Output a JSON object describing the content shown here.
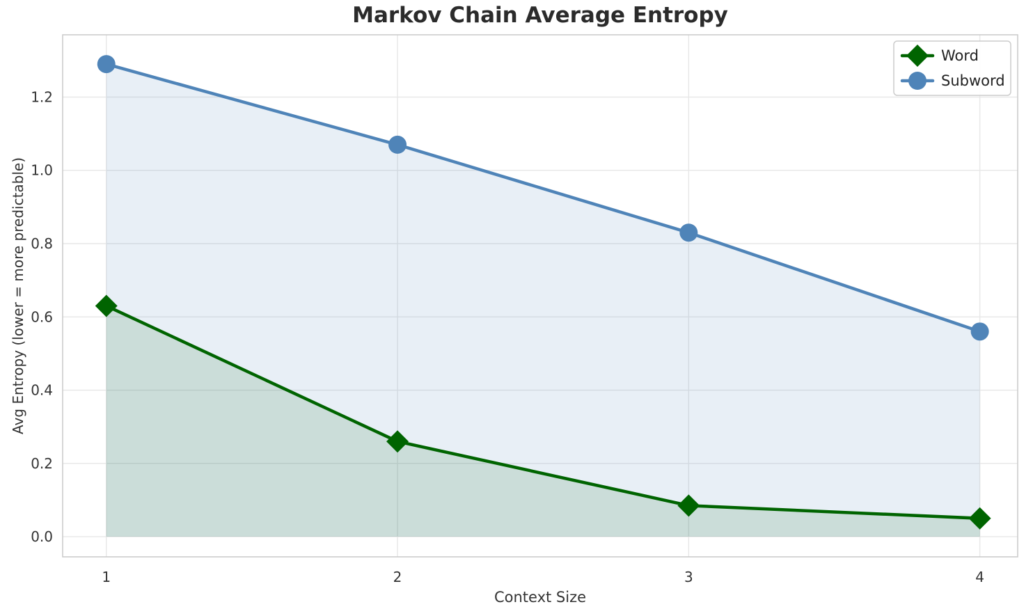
{
  "chart_data": {
    "type": "line",
    "title": "Markov Chain Average Entropy",
    "xlabel": "Context Size",
    "ylabel": "Avg Entropy (lower = more predictable)",
    "x": [
      1,
      2,
      3,
      4
    ],
    "series": [
      {
        "name": "Word",
        "values": [
          0.63,
          0.26,
          0.085,
          0.05
        ],
        "color": "#006400",
        "fill_color": "#006400",
        "fill_opacity": 0.13,
        "marker": "diamond",
        "line_width": 4.5
      },
      {
        "name": "Subword",
        "values": [
          1.29,
          1.07,
          0.83,
          0.56
        ],
        "color": "#4f84b8",
        "fill_color": "#4f84b8",
        "fill_opacity": 0.13,
        "marker": "circle",
        "line_width": 4.5
      }
    ],
    "xlim": [
      0.85,
      4.13
    ],
    "ylim": [
      -0.055,
      1.37
    ],
    "xticks": [
      1,
      2,
      3,
      4
    ],
    "xtick_labels": [
      "1",
      "2",
      "3",
      "4"
    ],
    "yticks": [
      0.0,
      0.2,
      0.4,
      0.6,
      0.8,
      1.0,
      1.2
    ],
    "ytick_labels": [
      "0.0",
      "0.2",
      "0.4",
      "0.6",
      "0.8",
      "1.0",
      "1.2"
    ],
    "grid": true,
    "grid_color": "#e7e7e7",
    "border_color": "#cccccc",
    "tick_label_color": "#333333",
    "legend_position": "upper right",
    "legend_border_color": "#cccccc",
    "legend_background": "#ffffff"
  }
}
